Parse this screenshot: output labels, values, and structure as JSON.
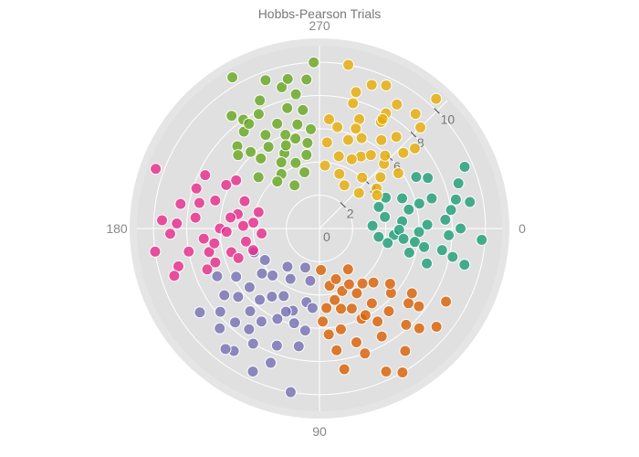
{
  "chart_data": {
    "type": "scatter",
    "coordinate_system": "polar",
    "title": "Hobbs-Pearson Trials",
    "angular_axis": {
      "tick_labels": [
        "0",
        "90",
        "180",
        "270"
      ],
      "tick_values_deg": [
        0,
        90,
        180,
        270
      ],
      "direction": "clockwise",
      "zero_position": "right"
    },
    "radial_axis": {
      "range": [
        0,
        11
      ],
      "tick_values": [
        0,
        2,
        4,
        6,
        8,
        10
      ],
      "tick_labels": [
        "0",
        "2",
        "4",
        "6",
        "8",
        "10"
      ],
      "label_angle_deg": 315
    },
    "grid": true,
    "legend": "none",
    "background_color": "#e0e0e0",
    "series": [
      {
        "color": "#1b9e77",
        "points": [
          {
            "r": 3.2,
            "theta": 357
          },
          {
            "r": 4.0,
            "theta": 350
          },
          {
            "r": 4.5,
            "theta": 5
          },
          {
            "r": 5.0,
            "theta": 355
          },
          {
            "r": 5.5,
            "theta": 348
          },
          {
            "r": 6.0,
            "theta": 2
          },
          {
            "r": 6.5,
            "theta": 358
          },
          {
            "r": 7.0,
            "theta": 345
          },
          {
            "r": 7.5,
            "theta": 10
          },
          {
            "r": 8.0,
            "theta": 352
          },
          {
            "r": 8.5,
            "theta": 0
          },
          {
            "r": 9.0,
            "theta": 14
          },
          {
            "r": 9.5,
            "theta": 337
          },
          {
            "r": 4.2,
            "theta": 12
          },
          {
            "r": 5.3,
            "theta": 340
          },
          {
            "r": 6.8,
            "theta": 18
          },
          {
            "r": 7.2,
            "theta": 335
          },
          {
            "r": 8.8,
            "theta": 342
          },
          {
            "r": 3.8,
            "theta": 340
          },
          {
            "r": 5.8,
            "theta": 8
          },
          {
            "r": 6.2,
            "theta": 346
          },
          {
            "r": 7.8,
            "theta": 3
          },
          {
            "r": 4.8,
            "theta": 1
          },
          {
            "r": 5.6,
            "theta": 15
          },
          {
            "r": 8.2,
            "theta": 12
          },
          {
            "r": 9.8,
            "theta": 4
          },
          {
            "r": 6.6,
            "theta": 332
          },
          {
            "r": 4.4,
            "theta": 335
          },
          {
            "r": 7.6,
            "theta": 356
          },
          {
            "r": 5.1,
            "theta": 7
          },
          {
            "r": 8.4,
            "theta": 348
          },
          {
            "r": 9.2,
            "theta": 350
          },
          {
            "r": 3.6,
            "theta": 8
          },
          {
            "r": 6.4,
            "theta": 10
          }
        ]
      },
      {
        "color": "#d95f02",
        "points": [
          {
            "r": 2.5,
            "theta": 88
          },
          {
            "r": 3.5,
            "theta": 80
          },
          {
            "r": 4.0,
            "theta": 70
          },
          {
            "r": 4.5,
            "theta": 60
          },
          {
            "r": 5.0,
            "theta": 75
          },
          {
            "r": 5.5,
            "theta": 55
          },
          {
            "r": 6.0,
            "theta": 65
          },
          {
            "r": 6.5,
            "theta": 50
          },
          {
            "r": 7.0,
            "theta": 40
          },
          {
            "r": 7.5,
            "theta": 60
          },
          {
            "r": 8.0,
            "theta": 70
          },
          {
            "r": 8.5,
            "theta": 45
          },
          {
            "r": 9.0,
            "theta": 55
          },
          {
            "r": 9.5,
            "theta": 65
          },
          {
            "r": 10.0,
            "theta": 60
          },
          {
            "r": 4.8,
            "theta": 85
          },
          {
            "r": 5.2,
            "theta": 68
          },
          {
            "r": 6.2,
            "theta": 78
          },
          {
            "r": 7.2,
            "theta": 72
          },
          {
            "r": 3.8,
            "theta": 62
          },
          {
            "r": 4.2,
            "theta": 52
          },
          {
            "r": 5.8,
            "theta": 42
          },
          {
            "r": 6.8,
            "theta": 35
          },
          {
            "r": 7.8,
            "theta": 48
          },
          {
            "r": 8.8,
            "theta": 30
          },
          {
            "r": 3.2,
            "theta": 72
          },
          {
            "r": 5.6,
            "theta": 88
          },
          {
            "r": 6.4,
            "theta": 85
          },
          {
            "r": 7.4,
            "theta": 82
          },
          {
            "r": 8.6,
            "theta": 80
          },
          {
            "r": 4.6,
            "theta": 45
          },
          {
            "r": 5.4,
            "theta": 38
          },
          {
            "r": 6.6,
            "theta": 58
          },
          {
            "r": 7.6,
            "theta": 38
          },
          {
            "r": 3.0,
            "theta": 55
          },
          {
            "r": 9.2,
            "theta": 40
          },
          {
            "r": 4.4,
            "theta": 78
          },
          {
            "r": 5.9,
            "theta": 62
          }
        ]
      },
      {
        "color": "#7570b3",
        "points": [
          {
            "r": 2.5,
            "theta": 110
          },
          {
            "r": 3.5,
            "theta": 120
          },
          {
            "r": 4.0,
            "theta": 135
          },
          {
            "r": 4.5,
            "theta": 100
          },
          {
            "r": 5.0,
            "theta": 125
          },
          {
            "r": 5.5,
            "theta": 140
          },
          {
            "r": 6.0,
            "theta": 115
          },
          {
            "r": 6.5,
            "theta": 130
          },
          {
            "r": 7.0,
            "theta": 145
          },
          {
            "r": 7.5,
            "theta": 110
          },
          {
            "r": 8.0,
            "theta": 120
          },
          {
            "r": 8.5,
            "theta": 135
          },
          {
            "r": 9.0,
            "theta": 125
          },
          {
            "r": 9.5,
            "theta": 115
          },
          {
            "r": 10.0,
            "theta": 100
          },
          {
            "r": 4.8,
            "theta": 95
          },
          {
            "r": 5.2,
            "theta": 108
          },
          {
            "r": 6.2,
            "theta": 98
          },
          {
            "r": 7.2,
            "theta": 100
          },
          {
            "r": 3.8,
            "theta": 150
          },
          {
            "r": 4.2,
            "theta": 160
          },
          {
            "r": 5.8,
            "theta": 150
          },
          {
            "r": 6.8,
            "theta": 155
          },
          {
            "r": 7.8,
            "theta": 140
          },
          {
            "r": 8.8,
            "theta": 145
          },
          {
            "r": 3.2,
            "theta": 100
          },
          {
            "r": 5.6,
            "theta": 130
          },
          {
            "r": 6.4,
            "theta": 140
          },
          {
            "r": 7.4,
            "theta": 125
          },
          {
            "r": 8.6,
            "theta": 110
          },
          {
            "r": 4.6,
            "theta": 118
          },
          {
            "r": 5.4,
            "theta": 112
          },
          {
            "r": 6.6,
            "theta": 122
          },
          {
            "r": 7.6,
            "theta": 132
          },
          {
            "r": 3.0,
            "theta": 130
          },
          {
            "r": 9.2,
            "theta": 128
          },
          {
            "r": 4.4,
            "theta": 142
          },
          {
            "r": 5.9,
            "theta": 105
          }
        ]
      },
      {
        "color": "#e7298a",
        "points": [
          {
            "r": 3.5,
            "theta": 175
          },
          {
            "r": 4.0,
            "theta": 185
          },
          {
            "r": 4.5,
            "theta": 170
          },
          {
            "r": 5.0,
            "theta": 190
          },
          {
            "r": 5.5,
            "theta": 165
          },
          {
            "r": 6.0,
            "theta": 180
          },
          {
            "r": 6.5,
            "theta": 195
          },
          {
            "r": 7.0,
            "theta": 175
          },
          {
            "r": 7.5,
            "theta": 185
          },
          {
            "r": 8.0,
            "theta": 170
          },
          {
            "r": 8.5,
            "theta": 190
          },
          {
            "r": 9.0,
            "theta": 178
          },
          {
            "r": 9.5,
            "theta": 183
          },
          {
            "r": 10.0,
            "theta": 172
          },
          {
            "r": 4.8,
            "theta": 200
          },
          {
            "r": 5.2,
            "theta": 160
          },
          {
            "r": 6.2,
            "theta": 205
          },
          {
            "r": 7.2,
            "theta": 160
          },
          {
            "r": 3.8,
            "theta": 195
          },
          {
            "r": 4.2,
            "theta": 162
          },
          {
            "r": 5.8,
            "theta": 210
          },
          {
            "r": 6.8,
            "theta": 168
          },
          {
            "r": 7.8,
            "theta": 198
          },
          {
            "r": 8.8,
            "theta": 165
          },
          {
            "r": 10.5,
            "theta": 200
          },
          {
            "r": 5.6,
            "theta": 178
          },
          {
            "r": 6.4,
            "theta": 172
          },
          {
            "r": 7.4,
            "theta": 192
          },
          {
            "r": 8.6,
            "theta": 182
          },
          {
            "r": 4.6,
            "theta": 182
          },
          {
            "r": 5.4,
            "theta": 187
          },
          {
            "r": 6.6,
            "theta": 162
          },
          {
            "r": 7.6,
            "theta": 205
          },
          {
            "r": 9.2,
            "theta": 162
          }
        ]
      },
      {
        "color": "#66a61e",
        "points": [
          {
            "r": 3.0,
            "theta": 240
          },
          {
            "r": 3.5,
            "theta": 255
          },
          {
            "r": 4.0,
            "theta": 235
          },
          {
            "r": 4.5,
            "theta": 260
          },
          {
            "r": 5.0,
            "theta": 245
          },
          {
            "r": 5.5,
            "theta": 230
          },
          {
            "r": 6.0,
            "theta": 250
          },
          {
            "r": 6.5,
            "theta": 240
          },
          {
            "r": 7.0,
            "theta": 225
          },
          {
            "r": 7.5,
            "theta": 255
          },
          {
            "r": 8.0,
            "theta": 235
          },
          {
            "r": 8.5,
            "theta": 245
          },
          {
            "r": 9.0,
            "theta": 265
          },
          {
            "r": 9.5,
            "theta": 250
          },
          {
            "r": 10.5,
            "theta": 240
          },
          {
            "r": 4.8,
            "theta": 220
          },
          {
            "r": 5.2,
            "theta": 262
          },
          {
            "r": 6.2,
            "theta": 228
          },
          {
            "r": 7.2,
            "theta": 262
          },
          {
            "r": 3.8,
            "theta": 228
          },
          {
            "r": 4.2,
            "theta": 250
          },
          {
            "r": 5.8,
            "theta": 238
          },
          {
            "r": 6.8,
            "theta": 248
          },
          {
            "r": 7.8,
            "theta": 242
          },
          {
            "r": 8.8,
            "theta": 255
          },
          {
            "r": 10.0,
            "theta": 268
          },
          {
            "r": 5.6,
            "theta": 255
          },
          {
            "r": 6.4,
            "theta": 258
          },
          {
            "r": 7.4,
            "theta": 232
          },
          {
            "r": 8.6,
            "theta": 232
          },
          {
            "r": 4.6,
            "theta": 240
          },
          {
            "r": 5.4,
            "theta": 248
          },
          {
            "r": 6.6,
            "theta": 222
          },
          {
            "r": 7.6,
            "theta": 236
          },
          {
            "r": 9.2,
            "theta": 258
          },
          {
            "r": 8.2,
            "theta": 260
          },
          {
            "r": 6.0,
            "theta": 265
          }
        ]
      },
      {
        "color": "#e6ab02",
        "points": [
          {
            "r": 3.0,
            "theta": 300
          },
          {
            "r": 3.5,
            "theta": 290
          },
          {
            "r": 4.0,
            "theta": 310
          },
          {
            "r": 4.5,
            "theta": 285
          },
          {
            "r": 5.0,
            "theta": 300
          },
          {
            "r": 5.5,
            "theta": 315
          },
          {
            "r": 6.0,
            "theta": 295
          },
          {
            "r": 6.5,
            "theta": 305
          },
          {
            "r": 7.0,
            "theta": 290
          },
          {
            "r": 7.5,
            "theta": 320
          },
          {
            "r": 8.0,
            "theta": 300
          },
          {
            "r": 8.5,
            "theta": 285
          },
          {
            "r": 9.0,
            "theta": 310
          },
          {
            "r": 9.5,
            "theta": 295
          },
          {
            "r": 10.0,
            "theta": 280
          },
          {
            "r": 4.8,
            "theta": 320
          },
          {
            "r": 5.2,
            "theta": 275
          },
          {
            "r": 6.2,
            "theta": 280
          },
          {
            "r": 7.2,
            "theta": 310
          },
          {
            "r": 3.8,
            "theta": 275
          },
          {
            "r": 4.2,
            "theta": 325
          },
          {
            "r": 5.8,
            "theta": 325
          },
          {
            "r": 6.8,
            "theta": 318
          },
          {
            "r": 7.8,
            "theta": 285
          },
          {
            "r": 8.8,
            "theta": 302
          },
          {
            "r": 10.5,
            "theta": 312
          },
          {
            "r": 5.6,
            "theta": 288
          },
          {
            "r": 6.4,
            "theta": 290
          },
          {
            "r": 7.4,
            "theta": 300
          },
          {
            "r": 8.6,
            "theta": 315
          },
          {
            "r": 4.6,
            "theta": 295
          },
          {
            "r": 5.4,
            "theta": 305
          },
          {
            "r": 6.6,
            "theta": 275
          },
          {
            "r": 7.6,
            "theta": 300
          },
          {
            "r": 9.2,
            "theta": 290
          },
          {
            "r": 4.0,
            "theta": 330
          },
          {
            "r": 5.9,
            "theta": 312
          },
          {
            "r": 3.2,
            "theta": 318
          }
        ]
      }
    ]
  }
}
